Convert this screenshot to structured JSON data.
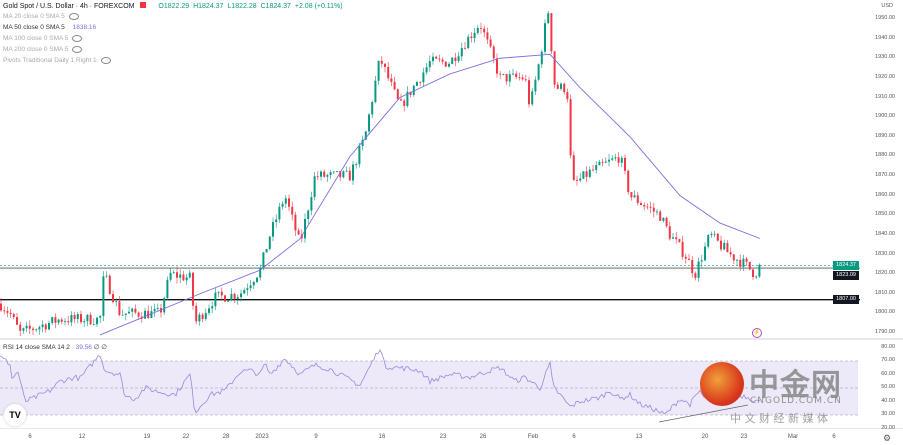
{
  "header": {
    "symbol": "Gold Spot / U.S. Dollar · 4h · FOREXCOM",
    "open": "O1822.29",
    "high": "H1824.37",
    "low": "L1822.28",
    "close": "C1824.37",
    "change": "+2.08 (+0.11%)"
  },
  "indicators": [
    {
      "label": "MA 20 close 0 SMA 5",
      "value": "",
      "hidden": true
    },
    {
      "label": "MA 50 close 0 SMA 5",
      "value": "1838.16",
      "hidden": false
    },
    {
      "label": "MA 100 close 0 SMA 5",
      "value": "",
      "hidden": true
    },
    {
      "label": "MA 200 close 0 SMA 5",
      "value": "",
      "hidden": true
    },
    {
      "label": "Pivots Traditional Daily 1 Right 1",
      "value": "",
      "hidden": true
    }
  ],
  "rsi": {
    "label": "RSI 14 close SMA 14 2",
    "value": "39.56",
    "extra": "∅ ∅"
  },
  "currency": "USD",
  "price_axis": [
    "1950.00",
    "1940.00",
    "1930.00",
    "1920.00",
    "1910.00",
    "1900.00",
    "1890.00",
    "1880.00",
    "1870.00",
    "1860.00",
    "1850.00",
    "1840.00",
    "1830.00",
    "1820.00",
    "1810.00",
    "1800.00",
    "1790.00"
  ],
  "rsi_axis": [
    "80.00",
    "70.00",
    "60.00",
    "50.00",
    "40.00",
    "30.00",
    "20.00"
  ],
  "price_tags": {
    "last": "1824.37",
    "line1": "1823.09",
    "line2": "1807.00"
  },
  "date_axis": [
    "6",
    "12",
    "19",
    "22",
    "28",
    "2023",
    "9",
    "16",
    "23",
    "26",
    "Feb",
    "6",
    "13",
    "20",
    "23",
    "Mar",
    "6"
  ],
  "colors": {
    "up": "#089981",
    "down": "#f23645",
    "ma": "#7b6fe0",
    "rsi": "#9b87e0",
    "rsi_band": "#ede9f8"
  },
  "chart_data": {
    "type": "candlestick",
    "price_path": [
      [
        0,
        1805
      ],
      [
        10,
        1800
      ],
      [
        20,
        1790
      ],
      [
        60,
        1797
      ],
      [
        100,
        1797
      ],
      [
        104,
        1820
      ],
      [
        120,
        1800
      ],
      [
        160,
        1800
      ],
      [
        170,
        1820
      ],
      [
        190,
        1818
      ],
      [
        195,
        1795
      ],
      [
        215,
        1808
      ],
      [
        240,
        1810
      ],
      [
        260,
        1822
      ],
      [
        270,
        1840
      ],
      [
        285,
        1860
      ],
      [
        300,
        1835
      ],
      [
        315,
        1870
      ],
      [
        350,
        1870
      ],
      [
        365,
        1890
      ],
      [
        380,
        1930
      ],
      [
        400,
        1905
      ],
      [
        430,
        1928
      ],
      [
        450,
        1928
      ],
      [
        480,
        1948
      ],
      [
        500,
        1920
      ],
      [
        525,
        1920
      ],
      [
        530,
        1905
      ],
      [
        540,
        1930
      ],
      [
        548,
        1955
      ],
      [
        555,
        1915
      ],
      [
        567,
        1915
      ],
      [
        572,
        1865
      ],
      [
        590,
        1872
      ],
      [
        620,
        1880
      ],
      [
        630,
        1860
      ],
      [
        660,
        1850
      ],
      [
        670,
        1840
      ],
      [
        685,
        1830
      ],
      [
        695,
        1820
      ],
      [
        710,
        1840
      ],
      [
        730,
        1830
      ],
      [
        745,
        1825
      ],
      [
        755,
        1820
      ],
      [
        760,
        1824.37
      ]
    ],
    "ma50_path": [
      [
        100,
        1789
      ],
      [
        200,
        1810
      ],
      [
        260,
        1822
      ],
      [
        300,
        1838
      ],
      [
        350,
        1880
      ],
      [
        400,
        1910
      ],
      [
        450,
        1922
      ],
      [
        500,
        1930
      ],
      [
        550,
        1932
      ],
      [
        580,
        1915
      ],
      [
        630,
        1890
      ],
      [
        680,
        1860
      ],
      [
        720,
        1846
      ],
      [
        760,
        1838.16
      ]
    ],
    "rsi_path": [
      [
        0,
        73
      ],
      [
        10,
        68
      ],
      [
        12,
        57
      ],
      [
        18,
        62
      ],
      [
        25,
        40
      ],
      [
        35,
        43
      ],
      [
        50,
        48
      ],
      [
        60,
        55
      ],
      [
        75,
        58
      ],
      [
        80,
        57
      ],
      [
        100,
        75
      ],
      [
        105,
        63
      ],
      [
        120,
        60
      ],
      [
        125,
        44
      ],
      [
        135,
        42
      ],
      [
        145,
        50
      ],
      [
        160,
        47
      ],
      [
        175,
        45
      ],
      [
        190,
        60
      ],
      [
        195,
        32
      ],
      [
        210,
        45
      ],
      [
        225,
        48
      ],
      [
        240,
        62
      ],
      [
        250,
        63
      ],
      [
        260,
        60
      ],
      [
        265,
        68
      ],
      [
        270,
        60
      ],
      [
        285,
        72
      ],
      [
        300,
        60
      ],
      [
        315,
        67
      ],
      [
        330,
        64
      ],
      [
        360,
        52
      ],
      [
        380,
        80
      ],
      [
        385,
        66
      ],
      [
        400,
        65
      ],
      [
        420,
        63
      ],
      [
        430,
        55
      ],
      [
        450,
        60
      ],
      [
        470,
        58
      ],
      [
        490,
        63
      ],
      [
        500,
        65
      ],
      [
        515,
        55
      ],
      [
        525,
        58
      ],
      [
        540,
        50
      ],
      [
        550,
        68
      ],
      [
        553,
        51
      ],
      [
        560,
        45
      ],
      [
        570,
        36
      ],
      [
        580,
        40
      ],
      [
        600,
        43
      ],
      [
        610,
        48
      ],
      [
        620,
        42
      ],
      [
        630,
        45
      ],
      [
        640,
        38
      ],
      [
        655,
        34
      ],
      [
        665,
        30
      ],
      [
        680,
        42
      ],
      [
        690,
        38
      ],
      [
        700,
        48
      ],
      [
        705,
        41
      ],
      [
        715,
        52
      ],
      [
        725,
        51
      ],
      [
        735,
        45
      ],
      [
        745,
        44
      ],
      [
        760,
        39.56
      ]
    ],
    "ylim": [
      1790,
      1955
    ],
    "hlines": [
      1824.37,
      1823.09,
      1807.0
    ],
    "rsi_levels": [
      70,
      50,
      30
    ]
  },
  "watermark": {
    "logo_text": "中金网",
    "domain": "CNGOLD.COM.CN",
    "tagline": "中 文 财 经 新 媒 体"
  }
}
